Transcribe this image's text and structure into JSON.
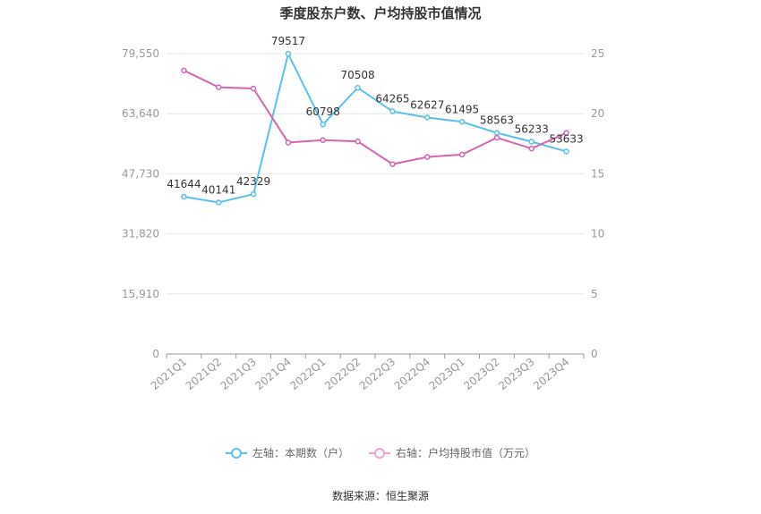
{
  "title": "季度股东户数、户均持股市值情况",
  "source": "数据来源：恒生聚源",
  "colors": {
    "left": "#5bc0eb",
    "right": "#d466b0",
    "grid": "#e6e6e6",
    "axis": "#999999"
  },
  "legend": [
    {
      "label": "左轴：本期数（户）",
      "color": "#5bc0eb"
    },
    {
      "label": "右轴：户均持股市值（万元）",
      "color": "#f0a3d2"
    }
  ],
  "chart_data": {
    "type": "line",
    "title": "季度股东户数、户均持股市值情况",
    "categories": [
      "2021Q1",
      "2021Q2",
      "2021Q3",
      "2021Q4",
      "2022Q1",
      "2022Q2",
      "2022Q3",
      "2022Q4",
      "2023Q1",
      "2023Q2",
      "2023Q3",
      "2023Q4"
    ],
    "left_axis": {
      "ticks": [
        "0",
        "15,910",
        "31,820",
        "47,730",
        "63,640",
        "79,550"
      ],
      "ylim": [
        0,
        79550
      ]
    },
    "right_axis": {
      "ticks": [
        "0",
        "5",
        "10",
        "15",
        "20",
        "25"
      ],
      "ylim": [
        0,
        25
      ]
    },
    "series": [
      {
        "name": "本期数（户）",
        "axis": "left",
        "values": [
          41644,
          40141,
          42329,
          79517,
          60798,
          70508,
          64265,
          62627,
          61495,
          58563,
          56233,
          53633
        ],
        "labels": [
          "41644",
          "40141",
          "42329",
          "79517",
          "60798",
          "70508",
          "64265",
          "62627",
          "61495",
          "58563",
          "56233",
          "53633"
        ]
      },
      {
        "name": "户均持股市值（万元）",
        "axis": "right",
        "values": [
          23.6,
          22.2,
          22.1,
          17.6,
          17.8,
          17.7,
          15.8,
          16.4,
          16.6,
          18.0,
          17.1,
          18.4
        ]
      }
    ],
    "grid": true,
    "legend_position": "bottom"
  }
}
